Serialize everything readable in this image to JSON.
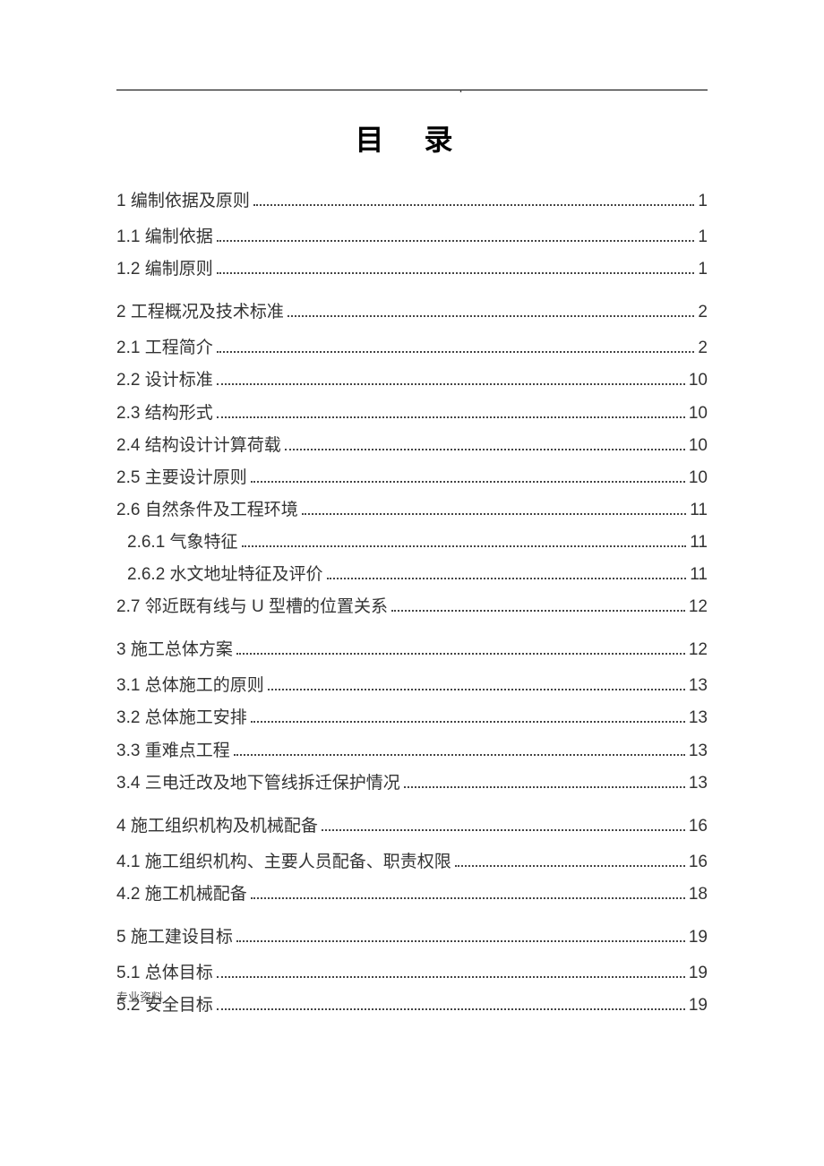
{
  "title": "目 录",
  "footer_text": "专业资料",
  "colors": {
    "background": "#ffffff",
    "text": "#333333",
    "line": "#000000",
    "dots": "#444444",
    "footer": "#555555"
  },
  "typography": {
    "title_fontsize": 32,
    "title_letter_spacing": 18,
    "entry_fontsize": 19,
    "entry_lineheight": 1.9,
    "footer_fontsize": 13
  },
  "toc": [
    {
      "label": "1 编制依据及原则",
      "page": "1",
      "level": 0,
      "section": true
    },
    {
      "label": "1.1 编制依据",
      "page": "1",
      "level": 0,
      "section": false
    },
    {
      "label": "1.2 编制原则",
      "page": "1",
      "level": 0,
      "section": false
    },
    {
      "label": "2 工程概况及技术标准",
      "page": "2",
      "level": 0,
      "section": true
    },
    {
      "label": "2.1 工程简介",
      "page": "2",
      "level": 0,
      "section": false
    },
    {
      "label": "2.2 设计标准",
      "page": "10",
      "level": 0,
      "section": false
    },
    {
      "label": "2.3 结构形式",
      "page": "10",
      "level": 0,
      "section": false
    },
    {
      "label": "2.4 结构设计计算荷载",
      "page": "10",
      "level": 0,
      "section": false
    },
    {
      "label": "2.5 主要设计原则",
      "page": "10",
      "level": 0,
      "section": false
    },
    {
      "label": "2.6 自然条件及工程环境",
      "page": "11",
      "level": 0,
      "section": false
    },
    {
      "label": "2.6.1 气象特征",
      "page": "11",
      "level": 1,
      "section": false
    },
    {
      "label": "2.6.2 水文地址特征及评价",
      "page": "11",
      "level": 1,
      "section": false
    },
    {
      "label": "2.7 邻近既有线与 U 型槽的位置关系",
      "page": "12",
      "level": 0,
      "section": false
    },
    {
      "label": "3 施工总体方案",
      "page": "12",
      "level": 0,
      "section": true
    },
    {
      "label": "3.1 总体施工的原则",
      "page": "13",
      "level": 0,
      "section": false
    },
    {
      "label": "3.2 总体施工安排",
      "page": "13",
      "level": 0,
      "section": false
    },
    {
      "label": "3.3 重难点工程",
      "page": "13",
      "level": 0,
      "section": false
    },
    {
      "label": "3.4 三电迁改及地下管线拆迁保护情况",
      "page": "13",
      "level": 0,
      "section": false
    },
    {
      "label": "4 施工组织机构及机械配备",
      "page": "16",
      "level": 0,
      "section": true
    },
    {
      "label": "4.1 施工组织机构、主要人员配备、职责权限",
      "page": "16",
      "level": 0,
      "section": false
    },
    {
      "label": "4.2 施工机械配备",
      "page": "18",
      "level": 0,
      "section": false
    },
    {
      "label": "5 施工建设目标",
      "page": "19",
      "level": 0,
      "section": true
    },
    {
      "label": "5.1 总体目标",
      "page": "19",
      "level": 0,
      "section": false
    },
    {
      "label": "5.2 安全目标",
      "page": "19",
      "level": 0,
      "section": false
    }
  ]
}
